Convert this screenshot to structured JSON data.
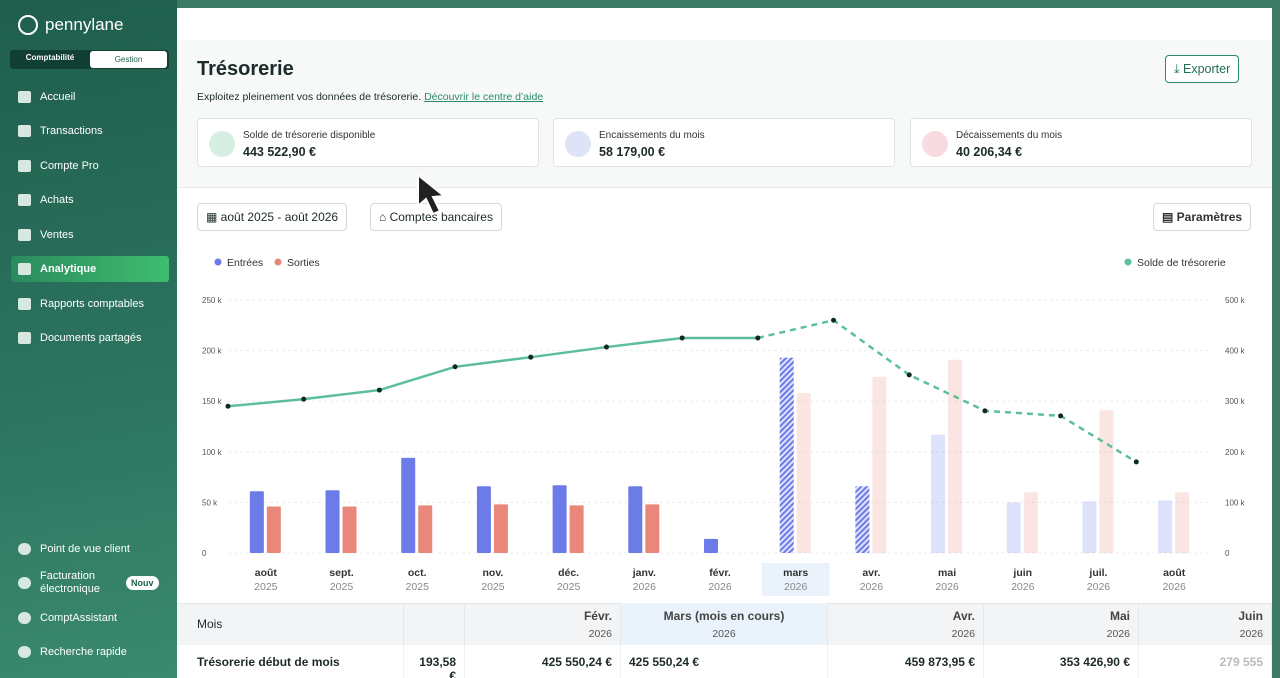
{
  "sidebar": {
    "logo": "pennylane",
    "toggle": [
      "Comptabilité",
      "Gestion"
    ],
    "nav": [
      "Accueil",
      "Transactions",
      "Compte Pro",
      "Achats",
      "Ventes",
      "Analytique",
      "Rapports comptables",
      "Documents partagés"
    ],
    "active": "Analytique",
    "bottom": [
      "Point de vue client",
      "Facturation électronique",
      "ComptAssistant",
      "Recherche rapide"
    ],
    "badge": "Nouv"
  },
  "header": {
    "title": "Trésorerie",
    "subtitle": "Exploitez pleinement vos données de trésorerie.",
    "link": "Découvrir le centre d’aide",
    "button": "Exporter"
  },
  "kpis": [
    {
      "label": "Solde de trésorerie disponible",
      "value": "443 522,90 €"
    },
    {
      "label": "Encaissements du mois",
      "value": "58 179,00 €"
    },
    {
      "label": "Décaissements du mois",
      "value": "40 206,34 €"
    }
  ],
  "toolbar": {
    "period": "août 2025 - août 2026",
    "accounts": "Comptes bancaires",
    "settings": "Paramètres"
  },
  "chart_data": {
    "type": "bar",
    "categories": [
      "août",
      "sept.",
      "oct.",
      "nov.",
      "déc.",
      "janv.",
      "févr.",
      "mars",
      "avr.",
      "mai",
      "juin",
      "juil.",
      "août"
    ],
    "category_years": [
      "2025",
      "2025",
      "2025",
      "2025",
      "2025",
      "2026",
      "2026",
      "2026",
      "2026",
      "2026",
      "2026",
      "2026",
      "2026"
    ],
    "highlight": "mars",
    "series": [
      {
        "name": "Entrées",
        "color": "#6b7be8",
        "values": [
          61000,
          62000,
          94000,
          66000,
          67000,
          66000,
          14000,
          193000,
          66000,
          117000,
          50000,
          51000,
          52000
        ]
      },
      {
        "name": "Sorties",
        "color": "#e8877a",
        "values": [
          46000,
          46000,
          47000,
          48000,
          47000,
          48000,
          null,
          158000,
          174000,
          191000,
          60000,
          141000,
          60000
        ]
      },
      {
        "name": "Solde de trésorerie",
        "color": "#5dbf9a",
        "axis": "y2",
        "line": true,
        "values": [
          290000,
          304000,
          322000,
          368000,
          387000,
          407000,
          425000,
          425000,
          460000,
          352000,
          281000,
          271000,
          180000
        ]
      }
    ],
    "ylim": [
      0,
      250000
    ],
    "yticks": [
      0,
      {
        "value": 50000,
        "label": "50 k"
      },
      {
        "value": 100000,
        "label": "100 k"
      },
      {
        "value": 150000,
        "label": "150 k"
      },
      {
        "value": 200000,
        "label": "200 k"
      },
      {
        "value": 250000,
        "label": "250 k"
      }
    ],
    "y2lim": [
      0,
      500000
    ],
    "y2ticks": [
      0,
      {
        "value": 100000,
        "label": "100 k"
      },
      {
        "value": 200000,
        "label": "200 k"
      },
      {
        "value": 300000,
        "label": "300 k"
      },
      {
        "value": 400000,
        "label": "400 k"
      },
      {
        "value": 500000,
        "label": "500 k"
      }
    ],
    "grid": true
  },
  "table": {
    "header": [
      [
        "Mois",
        ""
      ],
      [
        "",
        ""
      ],
      [
        "Févr.",
        "2026"
      ],
      [
        "Mars (mois en cours)",
        "2026"
      ],
      [
        "Avr.",
        "2026"
      ],
      [
        "Mai",
        "2026"
      ],
      [
        "Juin",
        "2026"
      ]
    ],
    "rows": [
      [
        "Trésorerie début de mois",
        "193,58 €",
        "425 550,24 €",
        "425 550,24 €",
        "459 873,95 €",
        "353 426,90 €",
        "279 555"
      ]
    ]
  }
}
